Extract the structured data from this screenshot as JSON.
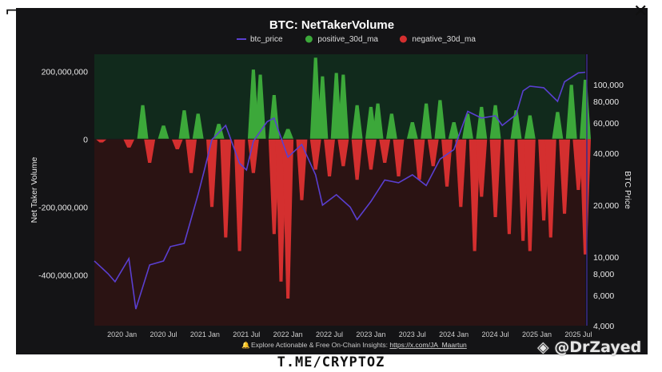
{
  "chart_data": {
    "type": "bar",
    "title": "BTC: NetTakerVolume",
    "legend": [
      {
        "name": "btc_price",
        "color": "#5a3fd0"
      },
      {
        "name": "positive_30d_ma",
        "color": "#3ca83a"
      },
      {
        "name": "negative_30d_ma",
        "color": "#d42f2f"
      }
    ],
    "legend_position": "top-center",
    "ylabel": "Net Taker Volume",
    "y2label": "BTC Price",
    "ylim": [
      -550000000,
      250000000
    ],
    "y_ticks": [
      200000000,
      0,
      -200000000,
      -400000000
    ],
    "y_tick_labels": [
      "200,000,000",
      "0",
      "-200,000,000",
      "-400,000,000"
    ],
    "y2_scale": "log",
    "y2lim": [
      4000,
      150000
    ],
    "y2_ticks": [
      100000,
      80000,
      60000,
      40000,
      20000,
      10000,
      8000,
      6000,
      4000
    ],
    "y2_tick_labels": [
      "100,000",
      "80,000",
      "60,000",
      "40,000",
      "20,000",
      "10,000",
      "8,000",
      "6,000",
      "4,000"
    ],
    "x_range": [
      "2019-09",
      "2025-08"
    ],
    "x_ticks": [
      "2020-01",
      "2020-07",
      "2021-01",
      "2021-07",
      "2022-01",
      "2022-07",
      "2023-01",
      "2023-07",
      "2024-01",
      "2024-07",
      "2025-01",
      "2025-07"
    ],
    "x_tick_labels": [
      "2020 Jan",
      "2020 Jul",
      "2021 Jan",
      "2021 Jul",
      "2022 Jan",
      "2022 Jul",
      "2023 Jan",
      "2023 Jul",
      "2024 Jan",
      "2024 Jul",
      "2025 Jan",
      "2025 Jul"
    ],
    "positive_30d_ma": [
      {
        "x": "2020-04",
        "y": 100000000
      },
      {
        "x": "2020-07",
        "y": 40000000
      },
      {
        "x": "2020-10",
        "y": 85000000
      },
      {
        "x": "2020-12",
        "y": 75000000
      },
      {
        "x": "2021-03",
        "y": 45000000
      },
      {
        "x": "2021-08",
        "y": 205000000
      },
      {
        "x": "2021-09",
        "y": 190000000
      },
      {
        "x": "2021-11",
        "y": 130000000
      },
      {
        "x": "2022-01",
        "y": 30000000
      },
      {
        "x": "2022-05",
        "y": 240000000
      },
      {
        "x": "2022-06",
        "y": 185000000
      },
      {
        "x": "2022-08",
        "y": 195000000
      },
      {
        "x": "2022-09",
        "y": 190000000
      },
      {
        "x": "2022-11",
        "y": 100000000
      },
      {
        "x": "2023-01",
        "y": 95000000
      },
      {
        "x": "2023-02",
        "y": 105000000
      },
      {
        "x": "2023-04",
        "y": 75000000
      },
      {
        "x": "2023-07",
        "y": 50000000
      },
      {
        "x": "2023-09",
        "y": 105000000
      },
      {
        "x": "2023-11",
        "y": 115000000
      },
      {
        "x": "2024-01",
        "y": 50000000
      },
      {
        "x": "2024-03",
        "y": 75000000
      },
      {
        "x": "2024-05",
        "y": 95000000
      },
      {
        "x": "2024-07",
        "y": 100000000
      },
      {
        "x": "2024-10",
        "y": 85000000
      },
      {
        "x": "2024-12",
        "y": 70000000
      },
      {
        "x": "2025-04",
        "y": 80000000
      },
      {
        "x": "2025-06",
        "y": 160000000
      },
      {
        "x": "2025-08",
        "y": 175000000
      }
    ],
    "negative_30d_ma": [
      {
        "x": "2019-10",
        "y": -10000000
      },
      {
        "x": "2020-02",
        "y": -25000000
      },
      {
        "x": "2020-05",
        "y": -70000000
      },
      {
        "x": "2020-09",
        "y": -30000000
      },
      {
        "x": "2020-11",
        "y": -100000000
      },
      {
        "x": "2021-02",
        "y": -200000000
      },
      {
        "x": "2021-04",
        "y": -290000000
      },
      {
        "x": "2021-06",
        "y": -330000000
      },
      {
        "x": "2021-08",
        "y": -100000000
      },
      {
        "x": "2021-11",
        "y": -280000000
      },
      {
        "x": "2021-12",
        "y": -420000000
      },
      {
        "x": "2022-01",
        "y": -470000000
      },
      {
        "x": "2022-03",
        "y": -180000000
      },
      {
        "x": "2022-05",
        "y": -90000000
      },
      {
        "x": "2022-07",
        "y": -110000000
      },
      {
        "x": "2022-09",
        "y": -80000000
      },
      {
        "x": "2022-11",
        "y": -120000000
      },
      {
        "x": "2023-01",
        "y": -90000000
      },
      {
        "x": "2023-03",
        "y": -70000000
      },
      {
        "x": "2023-05",
        "y": -110000000
      },
      {
        "x": "2023-08",
        "y": -120000000
      },
      {
        "x": "2023-10",
        "y": -80000000
      },
      {
        "x": "2023-12",
        "y": -140000000
      },
      {
        "x": "2024-02",
        "y": -200000000
      },
      {
        "x": "2024-04",
        "y": -330000000
      },
      {
        "x": "2024-05",
        "y": -170000000
      },
      {
        "x": "2024-07",
        "y": -230000000
      },
      {
        "x": "2024-09",
        "y": -280000000
      },
      {
        "x": "2024-11",
        "y": -300000000
      },
      {
        "x": "2024-12",
        "y": -330000000
      },
      {
        "x": "2025-02",
        "y": -240000000
      },
      {
        "x": "2025-03",
        "y": -290000000
      },
      {
        "x": "2025-05",
        "y": -220000000
      },
      {
        "x": "2025-07",
        "y": -150000000
      },
      {
        "x": "2025-08",
        "y": -340000000
      }
    ],
    "btc_price": [
      {
        "x": "2019-09",
        "y": 9500
      },
      {
        "x": "2019-11",
        "y": 8000
      },
      {
        "x": "2019-12",
        "y": 7200
      },
      {
        "x": "2020-02",
        "y": 9800
      },
      {
        "x": "2020-03",
        "y": 5000
      },
      {
        "x": "2020-05",
        "y": 9000
      },
      {
        "x": "2020-07",
        "y": 9500
      },
      {
        "x": "2020-08",
        "y": 11500
      },
      {
        "x": "2020-10",
        "y": 12000
      },
      {
        "x": "2020-12",
        "y": 23000
      },
      {
        "x": "2021-01",
        "y": 33000
      },
      {
        "x": "2021-02",
        "y": 48000
      },
      {
        "x": "2021-04",
        "y": 58000
      },
      {
        "x": "2021-06",
        "y": 35000
      },
      {
        "x": "2021-07",
        "y": 32000
      },
      {
        "x": "2021-08",
        "y": 47000
      },
      {
        "x": "2021-10",
        "y": 61000
      },
      {
        "x": "2021-11",
        "y": 64000
      },
      {
        "x": "2022-01",
        "y": 38000
      },
      {
        "x": "2022-03",
        "y": 45000
      },
      {
        "x": "2022-05",
        "y": 30000
      },
      {
        "x": "2022-06",
        "y": 20000
      },
      {
        "x": "2022-08",
        "y": 23000
      },
      {
        "x": "2022-10",
        "y": 19500
      },
      {
        "x": "2022-11",
        "y": 16500
      },
      {
        "x": "2023-01",
        "y": 21000
      },
      {
        "x": "2023-03",
        "y": 28000
      },
      {
        "x": "2023-05",
        "y": 27000
      },
      {
        "x": "2023-07",
        "y": 30000
      },
      {
        "x": "2023-09",
        "y": 26000
      },
      {
        "x": "2023-11",
        "y": 37000
      },
      {
        "x": "2024-01",
        "y": 42000
      },
      {
        "x": "2024-03",
        "y": 70000
      },
      {
        "x": "2024-05",
        "y": 64000
      },
      {
        "x": "2024-07",
        "y": 66000
      },
      {
        "x": "2024-08",
        "y": 58000
      },
      {
        "x": "2024-10",
        "y": 67000
      },
      {
        "x": "2024-11",
        "y": 92000
      },
      {
        "x": "2024-12",
        "y": 98000
      },
      {
        "x": "2025-02",
        "y": 96000
      },
      {
        "x": "2025-04",
        "y": 80000
      },
      {
        "x": "2025-05",
        "y": 104000
      },
      {
        "x": "2025-07",
        "y": 117000
      },
      {
        "x": "2025-08",
        "y": 118000
      }
    ]
  },
  "footer": {
    "insights_text": "Explore Actionable & Free On-Chain Insights:",
    "insights_link": "https://x.com/JA_Maartun"
  },
  "overlay": {
    "channel": "T.ME/CRYPTOZ",
    "watermark": "◈ @DrZayed"
  },
  "colors": {
    "panel_bg": "#141416",
    "plot_pos_bg": "#112a1c",
    "plot_neg_bg": "#2b1313",
    "positive": "#3ca83a",
    "negative": "#d42f2f",
    "price": "#5a3fd0"
  }
}
